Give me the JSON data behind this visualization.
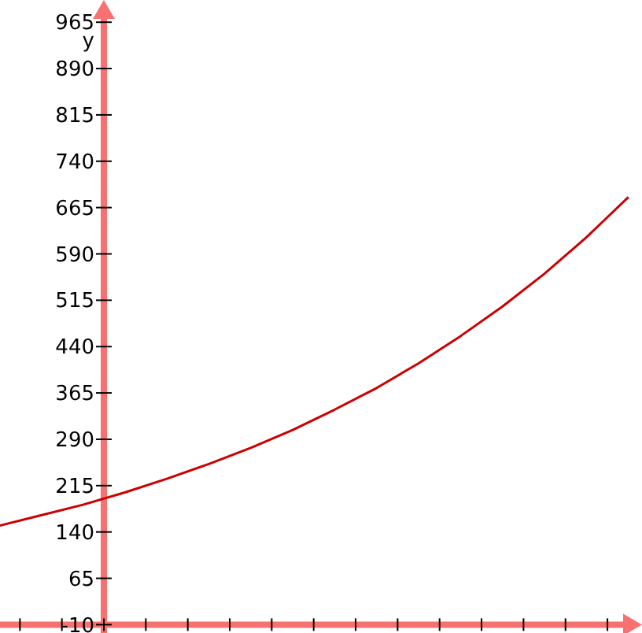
{
  "chart_data": {
    "type": "line",
    "ylabel": "y",
    "categories": [
      null,
      null,
      null,
      null,
      null,
      null,
      null,
      null,
      null,
      null,
      null,
      null,
      null,
      null,
      null,
      null
    ],
    "series": [
      {
        "color": "#cc0000",
        "values": [
          150,
          167,
          184,
          204,
          226,
          250,
          276,
          305,
          338,
          373,
          413,
          457,
          505,
          558,
          617,
          682
        ]
      }
    ],
    "ylim": [
      -10,
      978
    ],
    "yticks": [
      -10,
      65,
      140,
      215,
      290,
      365,
      440,
      515,
      590,
      665,
      740,
      815,
      890,
      965
    ],
    "tick_labels": "y",
    "line_style": "solid"
  }
}
